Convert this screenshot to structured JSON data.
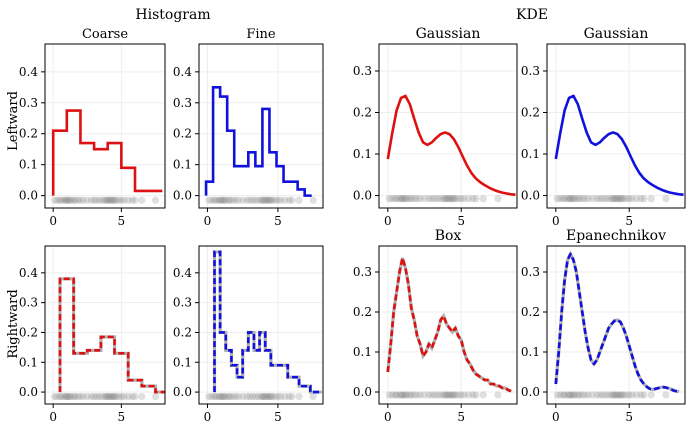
{
  "figure": {
    "group_titles": [
      "Histogram",
      "KDE"
    ],
    "row_labels": [
      "Leftward",
      "Rightward"
    ]
  },
  "colors": {
    "red": "#dd1111",
    "blue": "#1111dd",
    "points": "#808080",
    "grid": "#eeeeee"
  },
  "samples_x": [
    0.1,
    0.3,
    0.5,
    0.6,
    0.8,
    0.9,
    1.0,
    1.1,
    1.2,
    1.3,
    1.5,
    1.6,
    1.8,
    2.0,
    2.2,
    2.5,
    2.8,
    3.0,
    3.2,
    3.4,
    3.6,
    3.8,
    3.9,
    4.0,
    4.1,
    4.2,
    4.3,
    4.4,
    4.5,
    4.6,
    4.8,
    5.0,
    5.2,
    5.5,
    5.8,
    6.0,
    6.5,
    7.5
  ],
  "chart_data": [
    {
      "id": "hist-coarse-left",
      "type": "histogram",
      "title": "Coarse",
      "row_label": "Leftward",
      "color": "red",
      "line_style": "solid",
      "xlim": [
        -0.6,
        8.2
      ],
      "ylim": [
        -0.04,
        0.49
      ],
      "xticks": [
        0,
        5
      ],
      "yticks": [
        0.0,
        0.1,
        0.2,
        0.3,
        0.4
      ],
      "ytick_labels": [
        "0.0",
        "0.1",
        "0.2",
        "0.3",
        "0.4"
      ],
      "bin_edges": [
        0,
        1,
        2,
        3,
        4,
        5,
        6,
        8
      ],
      "values": [
        0.21,
        0.275,
        0.17,
        0.15,
        0.17,
        0.09,
        0.015
      ]
    },
    {
      "id": "hist-fine-left",
      "type": "histogram",
      "title": "Fine",
      "color": "blue",
      "line_style": "solid",
      "xlim": [
        -0.6,
        8.2
      ],
      "ylim": [
        -0.04,
        0.49
      ],
      "xticks": [
        0,
        5
      ],
      "yticks": [
        0.0,
        0.1,
        0.2,
        0.3,
        0.4
      ],
      "ytick_labels": [
        "0.0",
        "0.1",
        "0.2",
        "0.3",
        "0.4"
      ],
      "bin_edges": [
        -0.1,
        0.4,
        0.9,
        1.4,
        1.9,
        2.4,
        2.9,
        3.4,
        3.9,
        4.4,
        4.9,
        5.4,
        5.9,
        6.4,
        6.9,
        7.4
      ],
      "values": [
        0.045,
        0.35,
        0.32,
        0.21,
        0.095,
        0.095,
        0.14,
        0.095,
        0.28,
        0.14,
        0.095,
        0.045,
        0.045,
        0.02,
        0.0
      ]
    },
    {
      "id": "kde-gauss-left",
      "type": "line",
      "title": "Gaussian",
      "color": "red",
      "line_style": "solid",
      "xlim": [
        -0.6,
        8.8
      ],
      "ylim": [
        -0.03,
        0.365
      ],
      "xticks": [
        0,
        5
      ],
      "yticks": [
        0.0,
        0.1,
        0.2,
        0.3
      ],
      "ytick_labels": [
        "0.0",
        "0.1",
        "0.2",
        "0.3"
      ],
      "x": [
        0.0,
        0.3,
        0.6,
        0.9,
        1.2,
        1.5,
        1.8,
        2.1,
        2.4,
        2.7,
        3.0,
        3.3,
        3.6,
        3.9,
        4.2,
        4.5,
        4.8,
        5.1,
        5.4,
        5.7,
        6.0,
        6.3,
        6.6,
        6.9,
        7.2,
        7.5,
        7.8,
        8.1,
        8.4,
        8.7
      ],
      "y": [
        0.088,
        0.15,
        0.205,
        0.235,
        0.24,
        0.22,
        0.185,
        0.152,
        0.128,
        0.122,
        0.128,
        0.139,
        0.148,
        0.152,
        0.148,
        0.136,
        0.117,
        0.094,
        0.072,
        0.054,
        0.041,
        0.032,
        0.025,
        0.019,
        0.014,
        0.01,
        0.007,
        0.005,
        0.003,
        0.002
      ]
    },
    {
      "id": "kde-gauss-left-2",
      "type": "line",
      "title": "Gaussian",
      "color": "blue",
      "line_style": "solid",
      "xlim": [
        -0.6,
        8.8
      ],
      "ylim": [
        -0.03,
        0.365
      ],
      "xticks": [
        0,
        5
      ],
      "yticks": [
        0.0,
        0.1,
        0.2,
        0.3
      ],
      "ytick_labels": [
        "0.0",
        "0.1",
        "0.2",
        "0.3"
      ],
      "x": [
        0.0,
        0.3,
        0.6,
        0.9,
        1.2,
        1.5,
        1.8,
        2.1,
        2.4,
        2.7,
        3.0,
        3.3,
        3.6,
        3.9,
        4.2,
        4.5,
        4.8,
        5.1,
        5.4,
        5.7,
        6.0,
        6.3,
        6.6,
        6.9,
        7.2,
        7.5,
        7.8,
        8.1,
        8.4,
        8.7
      ],
      "y": [
        0.088,
        0.15,
        0.205,
        0.235,
        0.24,
        0.22,
        0.185,
        0.152,
        0.128,
        0.122,
        0.128,
        0.139,
        0.148,
        0.152,
        0.148,
        0.136,
        0.117,
        0.094,
        0.072,
        0.054,
        0.041,
        0.032,
        0.025,
        0.019,
        0.014,
        0.01,
        0.007,
        0.005,
        0.003,
        0.002
      ]
    },
    {
      "id": "hist-coarse-right",
      "type": "histogram",
      "title": "",
      "row_label": "Rightward",
      "color": "red",
      "line_style": "dashed",
      "xlim": [
        -0.6,
        8.2
      ],
      "ylim": [
        -0.04,
        0.49
      ],
      "xticks": [
        0,
        5
      ],
      "yticks": [
        0.0,
        0.1,
        0.2,
        0.3,
        0.4
      ],
      "ytick_labels": [
        "0.0",
        "0.1",
        "0.2",
        "0.3",
        "0.4"
      ],
      "bin_edges": [
        0.5,
        1.5,
        2.5,
        3.5,
        4.5,
        5.5,
        6.5,
        7.5,
        8.2
      ],
      "values": [
        0.38,
        0.13,
        0.14,
        0.185,
        0.13,
        0.04,
        0.02,
        0.0
      ]
    },
    {
      "id": "hist-fine-right",
      "type": "histogram",
      "title": "",
      "color": "blue",
      "line_style": "dashed",
      "xlim": [
        -0.6,
        8.2
      ],
      "ylim": [
        -0.04,
        0.49
      ],
      "xticks": [
        0,
        5
      ],
      "yticks": [
        0.0,
        0.1,
        0.2,
        0.3,
        0.4
      ],
      "ytick_labels": [
        "0.0",
        "0.1",
        "0.2",
        "0.3",
        "0.4"
      ],
      "bin_edges": [
        0.5,
        0.9,
        1.3,
        1.7,
        2.1,
        2.5,
        2.9,
        3.3,
        3.7,
        4.1,
        4.5,
        4.9,
        5.3,
        5.7,
        6.1,
        6.5,
        6.9,
        7.3,
        7.7,
        8.1
      ],
      "values": [
        0.47,
        0.2,
        0.14,
        0.09,
        0.05,
        0.14,
        0.2,
        0.14,
        0.2,
        0.14,
        0.09,
        0.09,
        0.09,
        0.05,
        0.05,
        0.02,
        0.02,
        0.0,
        0.0
      ]
    },
    {
      "id": "kde-box-right",
      "type": "line",
      "title": "Box",
      "color": "red",
      "line_style": "dashed",
      "xlim": [
        -0.6,
        8.8
      ],
      "ylim": [
        -0.03,
        0.365
      ],
      "xticks": [
        0,
        5
      ],
      "yticks": [
        0.0,
        0.1,
        0.2,
        0.3
      ],
      "ytick_labels": [
        "0.0",
        "0.1",
        "0.2",
        "0.3"
      ],
      "x": [
        0.0,
        0.2,
        0.4,
        0.6,
        0.8,
        1.0,
        1.2,
        1.4,
        1.6,
        1.8,
        2.0,
        2.2,
        2.4,
        2.6,
        2.8,
        3.0,
        3.2,
        3.4,
        3.6,
        3.8,
        4.0,
        4.2,
        4.4,
        4.6,
        4.8,
        5.0,
        5.2,
        5.4,
        5.6,
        5.8,
        6.0,
        6.2,
        6.4,
        6.6,
        6.8,
        7.0,
        7.2,
        7.4,
        7.6,
        7.8,
        8.0,
        8.2,
        8.4
      ],
      "y": [
        0.05,
        0.12,
        0.2,
        0.25,
        0.3,
        0.335,
        0.31,
        0.27,
        0.21,
        0.18,
        0.14,
        0.12,
        0.09,
        0.1,
        0.12,
        0.11,
        0.13,
        0.15,
        0.18,
        0.19,
        0.17,
        0.16,
        0.15,
        0.16,
        0.14,
        0.13,
        0.1,
        0.08,
        0.07,
        0.055,
        0.045,
        0.04,
        0.035,
        0.03,
        0.03,
        0.02,
        0.02,
        0.015,
        0.015,
        0.01,
        0.01,
        0.005,
        0.002
      ]
    },
    {
      "id": "kde-epan-right",
      "type": "line",
      "title": "Epanechnikov",
      "color": "blue",
      "line_style": "dashed",
      "xlim": [
        -0.6,
        8.8
      ],
      "ylim": [
        -0.03,
        0.365
      ],
      "xticks": [
        0,
        5
      ],
      "yticks": [
        0.0,
        0.1,
        0.2,
        0.3
      ],
      "ytick_labels": [
        "0.0",
        "0.1",
        "0.2",
        "0.3"
      ],
      "x": [
        0.0,
        0.2,
        0.4,
        0.6,
        0.8,
        1.0,
        1.2,
        1.4,
        1.6,
        1.8,
        2.0,
        2.2,
        2.4,
        2.6,
        2.8,
        3.0,
        3.2,
        3.4,
        3.6,
        3.8,
        4.0,
        4.2,
        4.4,
        4.6,
        4.8,
        5.0,
        5.2,
        5.4,
        5.6,
        5.8,
        6.0,
        6.2,
        6.4,
        6.6,
        6.8,
        7.0,
        7.2,
        7.4,
        7.6,
        7.8,
        8.0,
        8.2,
        8.4
      ],
      "y": [
        0.02,
        0.1,
        0.2,
        0.28,
        0.33,
        0.345,
        0.33,
        0.3,
        0.25,
        0.2,
        0.15,
        0.11,
        0.08,
        0.07,
        0.08,
        0.1,
        0.12,
        0.14,
        0.16,
        0.17,
        0.178,
        0.18,
        0.175,
        0.16,
        0.14,
        0.115,
        0.09,
        0.065,
        0.045,
        0.03,
        0.02,
        0.013,
        0.008,
        0.006,
        0.008,
        0.01,
        0.012,
        0.012,
        0.01,
        0.008,
        0.004,
        0.002,
        0.001
      ]
    }
  ]
}
